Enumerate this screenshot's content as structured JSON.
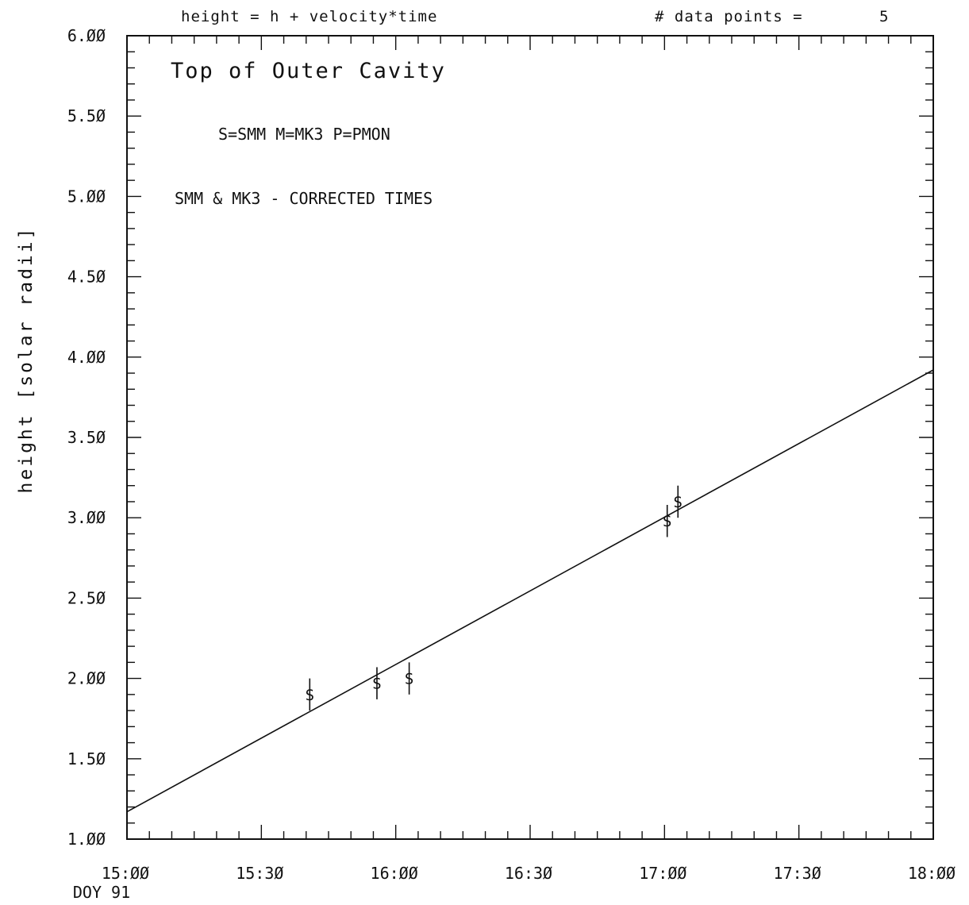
{
  "chart_data": {
    "type": "scatter",
    "header_left": "height = h + velocity*time",
    "header_right_label": "# data points =",
    "header_right_value": "5",
    "annotations": [
      "Top of Outer Cavity",
      "S=SMM  M=MK3  P=PMON",
      "SMM & MK3 - CORRECTED TIMES"
    ],
    "ylabel": "height [solar radii]",
    "xlabel": "",
    "x_sub_label": "DOY 91",
    "xlim": [
      15.0,
      18.0
    ],
    "ylim": [
      1.0,
      6.0
    ],
    "x_ticks": [
      {
        "value": 15.0,
        "label": "15:ØØ"
      },
      {
        "value": 15.5,
        "label": "15:3Ø"
      },
      {
        "value": 16.0,
        "label": "16:ØØ"
      },
      {
        "value": 16.5,
        "label": "16:3Ø"
      },
      {
        "value": 17.0,
        "label": "17:ØØ"
      },
      {
        "value": 17.5,
        "label": "17:3Ø"
      },
      {
        "value": 18.0,
        "label": "18:ØØ"
      }
    ],
    "y_ticks": [
      {
        "value": 1.0,
        "label": "1.ØØ"
      },
      {
        "value": 1.5,
        "label": "1.5Ø"
      },
      {
        "value": 2.0,
        "label": "2.ØØ"
      },
      {
        "value": 2.5,
        "label": "2.5Ø"
      },
      {
        "value": 3.0,
        "label": "3.ØØ"
      },
      {
        "value": 3.5,
        "label": "3.5Ø"
      },
      {
        "value": 4.0,
        "label": "4.ØØ"
      },
      {
        "value": 4.5,
        "label": "4.5Ø"
      },
      {
        "value": 5.0,
        "label": "5.ØØ"
      },
      {
        "value": 5.5,
        "label": "5.5Ø"
      },
      {
        "value": 6.0,
        "label": "6.ØØ"
      }
    ],
    "points": [
      {
        "x": 15.68,
        "y": 1.9,
        "err_low": 1.8,
        "err_high": 2.0,
        "marker": "S"
      },
      {
        "x": 15.93,
        "y": 1.97,
        "err_low": 1.87,
        "err_high": 2.07,
        "marker": "S"
      },
      {
        "x": 16.05,
        "y": 2.0,
        "err_low": 1.9,
        "err_high": 2.1,
        "marker": "S"
      },
      {
        "x": 17.01,
        "y": 2.98,
        "err_low": 2.88,
        "err_high": 3.08,
        "marker": "S"
      },
      {
        "x": 17.05,
        "y": 3.1,
        "err_low": 3.0,
        "err_high": 3.2,
        "marker": "S"
      }
    ],
    "fit_line": {
      "x_start": 15.0,
      "y_start": 1.17,
      "x_end": 18.0,
      "y_end": 3.92
    },
    "grid": false,
    "legend": "none"
  }
}
